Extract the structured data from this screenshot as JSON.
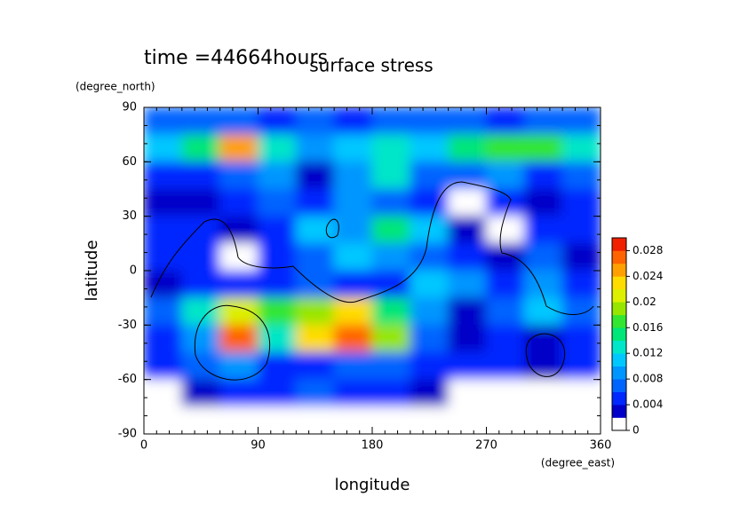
{
  "chart_data": {
    "type": "contour",
    "time_label": "time =44664hours",
    "title": "surface stress",
    "x_label": "longitude",
    "x_unit": "(degree_east)",
    "y_label": "latitude",
    "y_unit": "(degree_north)",
    "xlim": [
      0,
      360
    ],
    "xticks": [
      0,
      90,
      180,
      270,
      360
    ],
    "ylim": [
      -90,
      90
    ],
    "yticks": [
      -90,
      -60,
      -30,
      0,
      30,
      60,
      90
    ],
    "x": [
      15,
      45,
      75,
      105,
      135,
      165,
      195,
      225,
      255,
      285,
      315,
      345
    ],
    "y": [
      82.5,
      67.5,
      52.5,
      37.5,
      22.5,
      7.5,
      -7.5,
      -22.5,
      -37.5,
      -52.5,
      -67.5,
      -82.5
    ],
    "z": [
      [
        0.006,
        0.007,
        0.006,
        0.005,
        0.006,
        0.005,
        0.006,
        0.006,
        0.006,
        0.005,
        0.006,
        0.006
      ],
      [
        0.01,
        0.014,
        0.024,
        0.012,
        0.008,
        0.01,
        0.012,
        0.01,
        0.014,
        0.016,
        0.016,
        0.012
      ],
      [
        0.004,
        0.005,
        0.006,
        0.008,
        0.003,
        0.008,
        0.012,
        0.006,
        0.006,
        0.008,
        0.004,
        0.006
      ],
      [
        0.003,
        0.003,
        0.004,
        0.006,
        0.004,
        0.008,
        0.006,
        0.004,
        0.001,
        0.004,
        0.002,
        0.004
      ],
      [
        0.004,
        0.005,
        0.003,
        0.004,
        0.01,
        0.008,
        0.014,
        0.01,
        0.003,
        0.001,
        0.005,
        0.004
      ],
      [
        0.004,
        0.004,
        0.001,
        0.004,
        0.006,
        0.01,
        0.008,
        0.006,
        0.004,
        0.003,
        0.006,
        0.003
      ],
      [
        0.003,
        0.004,
        0.005,
        0.004,
        0.006,
        0.005,
        0.004,
        0.01,
        0.008,
        0.004,
        0.008,
        0.004
      ],
      [
        0.006,
        0.012,
        0.02,
        0.016,
        0.018,
        0.022,
        0.014,
        0.008,
        0.003,
        0.006,
        0.01,
        0.006
      ],
      [
        0.004,
        0.008,
        0.026,
        0.012,
        0.022,
        0.026,
        0.018,
        0.006,
        0.002,
        0.004,
        0.003,
        0.004
      ],
      [
        0.004,
        0.006,
        0.008,
        0.004,
        0.004,
        0.006,
        0.006,
        0.004,
        0.004,
        0.005,
        0.003,
        0.004
      ],
      [
        0.001,
        0.002,
        0.004,
        0.004,
        0.006,
        0.005,
        0.005,
        0.003,
        0.001,
        0.001,
        0.001,
        0.001
      ],
      [
        0,
        0,
        0,
        0,
        0,
        0,
        0,
        0,
        0,
        0,
        0,
        0
      ]
    ],
    "levels": [
      0,
      0.002,
      0.004,
      0.006,
      0.008,
      0.01,
      0.012,
      0.014,
      0.016,
      0.018,
      0.02,
      0.022,
      0.024,
      0.026,
      0.028,
      0.03
    ],
    "colors": [
      "#ffffff",
      "#0000c8",
      "#0028ff",
      "#0064ff",
      "#0096ff",
      "#00c8ff",
      "#00e6c8",
      "#00e678",
      "#32e632",
      "#96e600",
      "#dcf000",
      "#ffdc00",
      "#ffa000",
      "#ff6400",
      "#f02000"
    ],
    "colorbar_ticks": [
      0,
      0.004,
      0.008,
      0.012,
      0.016,
      0.02,
      0.024,
      0.028
    ]
  }
}
